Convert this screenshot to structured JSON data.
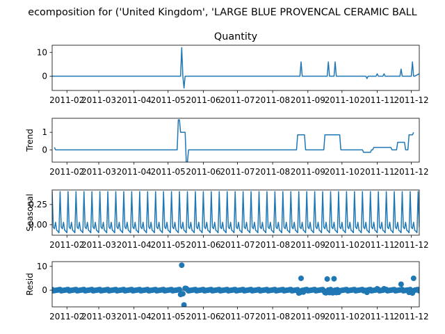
{
  "figure": {
    "title": "ecomposition for ('United Kingdom', 'LARGE BLUE PROVENCAL CERAMIC BALL"
  },
  "chart_data": [
    {
      "type": "line",
      "title": "Quantity",
      "ylabel": "",
      "ylim": [
        -6,
        13
      ],
      "yticks": [
        0,
        10
      ],
      "xticks": [
        "2011-02",
        "2011-03",
        "2011-04",
        "2011-05",
        "2011-06",
        "2011-07",
        "2011-08",
        "2011-09",
        "2011-10",
        "2011-11",
        "2011-12"
      ],
      "xlim": [
        "2011-01-19",
        "2011-12-08"
      ],
      "series": [
        {
          "x": [
            "2011-01-19",
            "2011-05-12",
            "2011-05-13",
            "2011-05-14",
            "2011-05-15",
            "2011-05-16",
            "2011-08-25",
            "2011-08-26",
            "2011-08-27",
            "2011-09-18",
            "2011-09-19",
            "2011-09-20",
            "2011-09-24",
            "2011-09-25",
            "2011-09-26",
            "2011-10-22",
            "2011-10-23",
            "2011-10-24",
            "2011-10-31",
            "2011-11-01",
            "2011-11-02",
            "2011-11-06",
            "2011-11-07",
            "2011-11-08",
            "2011-11-21",
            "2011-11-22",
            "2011-11-23",
            "2011-12-01",
            "2011-12-02",
            "2011-12-03",
            "2011-12-04",
            "2011-12-08"
          ],
          "y": [
            0,
            0,
            12,
            0,
            -5,
            0,
            0,
            6,
            0,
            0,
            6,
            0,
            0,
            6,
            0,
            0,
            -1,
            0,
            0,
            1,
            0,
            0,
            1,
            0,
            0,
            3,
            0,
            0,
            6,
            0,
            0,
            1
          ]
        }
      ]
    },
    {
      "type": "line",
      "title": "",
      "ylabel": "Trend",
      "ylim": [
        -0.7,
        1.8
      ],
      "yticks": [
        0,
        1
      ],
      "xticks": [
        "2011-02",
        "2011-03",
        "2011-04",
        "2011-05",
        "2011-06",
        "2011-07",
        "2011-08",
        "2011-09",
        "2011-10",
        "2011-11",
        "2011-12"
      ],
      "xlim": [
        "2011-01-19",
        "2011-12-08"
      ],
      "series": [
        {
          "x": [
            "2011-01-21",
            "2011-01-22",
            "2011-05-09",
            "2011-05-10",
            "2011-05-11",
            "2011-05-12",
            "2011-05-16",
            "2011-05-17",
            "2011-05-18",
            "2011-05-19",
            "2011-08-22",
            "2011-08-23",
            "2011-08-29",
            "2011-08-30",
            "2011-09-15",
            "2011-09-16",
            "2011-09-29",
            "2011-09-30",
            "2011-10-19",
            "2011-10-20",
            "2011-10-26",
            "2011-10-27",
            "2011-10-28",
            "2011-10-29",
            "2011-11-02",
            "2011-11-03",
            "2011-11-10",
            "2011-11-11",
            "2011-11-13",
            "2011-11-14",
            "2011-11-18",
            "2011-11-19",
            "2011-11-25",
            "2011-11-26",
            "2011-11-28",
            "2011-11-29",
            "2011-12-01",
            "2011-12-02",
            "2011-12-03"
          ],
          "y": [
            0.14,
            0,
            0,
            1.71,
            1.71,
            1,
            1,
            -0.71,
            -0.71,
            0,
            0,
            0.86,
            0.86,
            0,
            0,
            0.86,
            0.86,
            0,
            0,
            -0.14,
            -0.14,
            0,
            0,
            0.14,
            0.14,
            0.14,
            0.14,
            0.14,
            0.14,
            0,
            0,
            0.43,
            0.43,
            0,
            0,
            0.86,
            0.86,
            0.86,
            1
          ]
        }
      ]
    },
    {
      "type": "line",
      "title": "",
      "ylabel": "Seasonal",
      "ylim": [
        -0.13,
        0.43
      ],
      "yticks": [
        -0.0,
        0.25
      ],
      "ytick_labels": [
        "0.00",
        "0.25"
      ],
      "xticks": [
        "2011-02",
        "2011-03",
        "2011-04",
        "2011-05",
        "2011-06",
        "2011-07",
        "2011-08",
        "2011-09",
        "2011-10",
        "2011-11",
        "2011-12"
      ],
      "xlim": [
        "2011-01-19",
        "2011-12-08"
      ],
      "period_days": 7,
      "series": [
        {
          "start": "2011-01-19",
          "weekly_pattern": [
            0.41,
            -0.03,
            -0.05,
            0.03,
            -0.07,
            -0.08,
            -0.1
          ]
        }
      ]
    },
    {
      "type": "scatter",
      "title": "",
      "ylabel": "Resid",
      "ylim": [
        -7,
        12
      ],
      "yticks": [
        0,
        10
      ],
      "xticks": [
        "2011-02",
        "2011-03",
        "2011-04",
        "2011-05",
        "2011-06",
        "2011-07",
        "2011-08",
        "2011-09",
        "2011-10",
        "2011-11",
        "2011-12"
      ],
      "xlim": [
        "2011-01-19",
        "2011-12-08"
      ],
      "baseline": 0,
      "outliers": [
        {
          "x": "2011-05-12",
          "y": -1.8
        },
        {
          "x": "2011-05-13",
          "y": 10.5
        },
        {
          "x": "2011-05-14",
          "y": -1.5
        },
        {
          "x": "2011-05-15",
          "y": -6.2
        },
        {
          "x": "2011-05-16",
          "y": 0.8
        },
        {
          "x": "2011-05-17",
          "y": 0.7
        },
        {
          "x": "2011-08-24",
          "y": -1.2
        },
        {
          "x": "2011-08-25",
          "y": -1.0
        },
        {
          "x": "2011-08-26",
          "y": 5.0
        },
        {
          "x": "2011-08-28",
          "y": -0.8
        },
        {
          "x": "2011-09-16",
          "y": -1.0
        },
        {
          "x": "2011-09-17",
          "y": -1.1
        },
        {
          "x": "2011-09-18",
          "y": 4.7
        },
        {
          "x": "2011-09-20",
          "y": -1.0
        },
        {
          "x": "2011-09-22",
          "y": -1.0
        },
        {
          "x": "2011-09-23",
          "y": -1.1
        },
        {
          "x": "2011-09-24",
          "y": 4.8
        },
        {
          "x": "2011-09-26",
          "y": -1.0
        },
        {
          "x": "2011-09-28",
          "y": -0.9
        },
        {
          "x": "2011-10-23",
          "y": -0.9
        },
        {
          "x": "2011-11-01",
          "y": 0.6
        },
        {
          "x": "2011-11-07",
          "y": 0.6
        },
        {
          "x": "2011-11-22",
          "y": 2.5
        },
        {
          "x": "2011-11-29",
          "y": -0.9
        },
        {
          "x": "2011-12-02",
          "y": -1.2
        },
        {
          "x": "2011-12-03",
          "y": 5.0
        }
      ]
    }
  ],
  "colors": {
    "line": "#1f77b4",
    "marker": "#1f77b4",
    "axis": "#000000",
    "text": "#000000"
  }
}
